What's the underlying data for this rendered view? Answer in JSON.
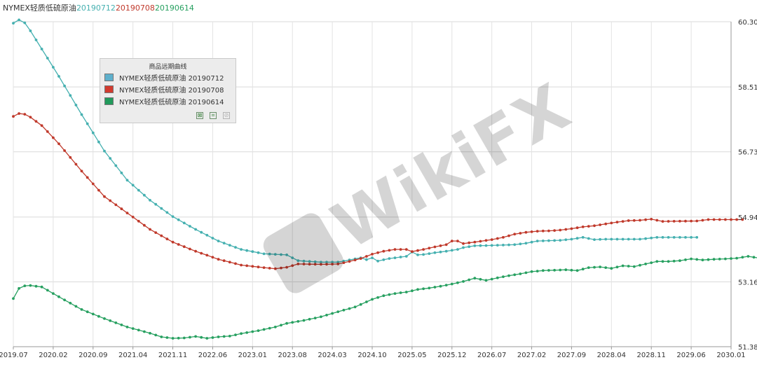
{
  "header": {
    "series_name": "NYMEX轻质低硫原油",
    "dates": [
      {
        "label": "20190712",
        "color": "#45b0b0"
      },
      {
        "label": "20190708",
        "color": "#c0392b"
      },
      {
        "label": "20190614",
        "color": "#27a060"
      }
    ]
  },
  "legend": {
    "title": "商品远期曲线",
    "items": [
      {
        "label": "NYMEX轻质低硫原油 20190712",
        "color": "#5fb0cc"
      },
      {
        "label": "NYMEX轻质低硫原油 20190708",
        "color": "#d23a2e"
      },
      {
        "label": "NYMEX轻质低硫原油 20190614",
        "color": "#229a5c"
      }
    ],
    "tools": [
      "export-icon",
      "crop-icon",
      "disabled-tool-icon"
    ]
  },
  "watermark": {
    "text": "WikiFX"
  },
  "chart_data": {
    "type": "line",
    "x_labels": [
      "2019.07",
      "2020.02",
      "2020.09",
      "2021.04",
      "2021.11",
      "2022.06",
      "2023.01",
      "2023.08",
      "2024.03",
      "2024.10",
      "2025.05",
      "2025.12",
      "2026.07",
      "2027.02",
      "2027.09",
      "2028.04",
      "2028.11",
      "2029.06",
      "2030.01"
    ],
    "y_ticks": [
      51.38,
      53.16,
      54.94,
      56.73,
      58.51,
      60.3
    ],
    "ylim": [
      51.38,
      60.3
    ],
    "grid": true,
    "legend_position": "top-left",
    "series": [
      {
        "name": "NYMEX轻质低硫原油 20190712",
        "color": "#45b0b0",
        "points": [
          [
            0,
            60.26
          ],
          [
            1,
            60.35
          ],
          [
            2,
            60.27
          ],
          [
            3,
            60.05
          ],
          [
            5,
            59.55
          ],
          [
            8,
            58.8
          ],
          [
            12,
            57.75
          ],
          [
            16,
            56.75
          ],
          [
            20,
            55.95
          ],
          [
            24,
            55.4
          ],
          [
            28,
            54.95
          ],
          [
            32,
            54.6
          ],
          [
            36,
            54.28
          ],
          [
            40,
            54.05
          ],
          [
            44,
            53.93
          ],
          [
            48,
            53.9
          ],
          [
            50,
            53.74
          ],
          [
            54,
            53.7
          ],
          [
            57,
            53.7
          ],
          [
            59,
            53.76
          ],
          [
            61,
            53.82
          ],
          [
            62,
            53.77
          ],
          [
            63,
            53.82
          ],
          [
            64,
            53.73
          ],
          [
            66,
            53.8
          ],
          [
            69,
            53.86
          ],
          [
            70,
            53.98
          ],
          [
            71,
            53.9
          ],
          [
            72,
            53.91
          ],
          [
            74,
            53.96
          ],
          [
            76,
            54.0
          ],
          [
            78,
            54.05
          ],
          [
            79,
            54.1
          ],
          [
            81,
            54.15
          ],
          [
            84,
            54.16
          ],
          [
            86,
            54.17
          ],
          [
            88,
            54.18
          ],
          [
            90,
            54.22
          ],
          [
            92,
            54.28
          ],
          [
            94,
            54.29
          ],
          [
            96,
            54.3
          ],
          [
            98,
            54.33
          ],
          [
            100,
            54.38
          ],
          [
            102,
            54.32
          ],
          [
            104,
            54.33
          ],
          [
            110,
            54.33
          ],
          [
            113,
            54.38
          ],
          [
            120,
            54.38
          ]
        ]
      },
      {
        "name": "NYMEX轻质低硫原油 20190708",
        "color": "#c0392b",
        "points": [
          [
            0,
            57.7
          ],
          [
            1,
            57.78
          ],
          [
            2,
            57.76
          ],
          [
            3,
            57.68
          ],
          [
            5,
            57.45
          ],
          [
            8,
            56.95
          ],
          [
            12,
            56.2
          ],
          [
            16,
            55.5
          ],
          [
            20,
            55.05
          ],
          [
            24,
            54.6
          ],
          [
            28,
            54.25
          ],
          [
            32,
            54.0
          ],
          [
            36,
            53.78
          ],
          [
            40,
            53.62
          ],
          [
            44,
            53.55
          ],
          [
            46,
            53.52
          ],
          [
            48,
            53.56
          ],
          [
            50,
            53.65
          ],
          [
            54,
            53.64
          ],
          [
            57,
            53.65
          ],
          [
            59,
            53.72
          ],
          [
            61,
            53.8
          ],
          [
            63,
            53.92
          ],
          [
            65,
            54.0
          ],
          [
            67,
            54.05
          ],
          [
            69,
            54.05
          ],
          [
            70,
            53.99
          ],
          [
            72,
            54.05
          ],
          [
            74,
            54.12
          ],
          [
            76,
            54.18
          ],
          [
            77,
            54.28
          ],
          [
            78,
            54.28
          ],
          [
            79,
            54.21
          ],
          [
            81,
            54.25
          ],
          [
            84,
            54.32
          ],
          [
            86,
            54.38
          ],
          [
            88,
            54.47
          ],
          [
            90,
            54.52
          ],
          [
            92,
            54.55
          ],
          [
            94,
            54.56
          ],
          [
            96,
            54.58
          ],
          [
            98,
            54.62
          ],
          [
            100,
            54.67
          ],
          [
            102,
            54.7
          ],
          [
            104,
            54.75
          ],
          [
            106,
            54.8
          ],
          [
            108,
            54.84
          ],
          [
            110,
            54.85
          ],
          [
            112,
            54.88
          ],
          [
            114,
            54.82
          ],
          [
            120,
            54.83
          ],
          [
            122,
            54.87
          ],
          [
            128,
            54.87
          ]
        ]
      },
      {
        "name": "NYMEX轻质低硫原油 20190614",
        "color": "#27a060",
        "points": [
          [
            0,
            52.7
          ],
          [
            1,
            52.98
          ],
          [
            2,
            53.05
          ],
          [
            3,
            53.06
          ],
          [
            5,
            53.02
          ],
          [
            8,
            52.75
          ],
          [
            12,
            52.4
          ],
          [
            16,
            52.15
          ],
          [
            20,
            51.92
          ],
          [
            24,
            51.75
          ],
          [
            26,
            51.65
          ],
          [
            28,
            51.61
          ],
          [
            30,
            51.62
          ],
          [
            32,
            51.66
          ],
          [
            34,
            51.61
          ],
          [
            36,
            51.65
          ],
          [
            38,
            51.67
          ],
          [
            40,
            51.74
          ],
          [
            43,
            51.82
          ],
          [
            46,
            51.92
          ],
          [
            48,
            52.02
          ],
          [
            51,
            52.1
          ],
          [
            54,
            52.2
          ],
          [
            57,
            52.34
          ],
          [
            60,
            52.47
          ],
          [
            63,
            52.68
          ],
          [
            65,
            52.78
          ],
          [
            67,
            52.84
          ],
          [
            69,
            52.88
          ],
          [
            71,
            52.95
          ],
          [
            73,
            52.99
          ],
          [
            75,
            53.04
          ],
          [
            77,
            53.1
          ],
          [
            79,
            53.17
          ],
          [
            81,
            53.26
          ],
          [
            83,
            53.2
          ],
          [
            85,
            53.27
          ],
          [
            87,
            53.33
          ],
          [
            89,
            53.38
          ],
          [
            91,
            53.44
          ],
          [
            93,
            53.47
          ],
          [
            95,
            53.48
          ],
          [
            97,
            53.49
          ],
          [
            99,
            53.47
          ],
          [
            101,
            53.55
          ],
          [
            103,
            53.57
          ],
          [
            105,
            53.53
          ],
          [
            107,
            53.6
          ],
          [
            109,
            53.58
          ],
          [
            111,
            53.65
          ],
          [
            113,
            53.72
          ],
          [
            115,
            53.72
          ],
          [
            117,
            53.74
          ],
          [
            119,
            53.79
          ],
          [
            121,
            53.76
          ],
          [
            123,
            53.78
          ],
          [
            125,
            53.79
          ],
          [
            127,
            53.81
          ],
          [
            129,
            53.86
          ],
          [
            131,
            53.81
          ],
          [
            133,
            53.79
          ],
          [
            139,
            53.79
          ],
          [
            141,
            53.82
          ],
          [
            143,
            53.84
          ]
        ]
      }
    ]
  }
}
